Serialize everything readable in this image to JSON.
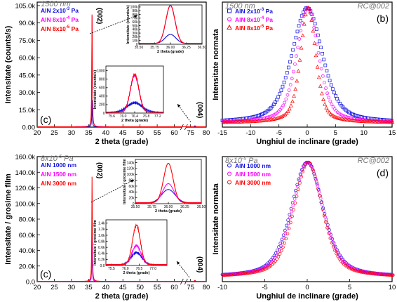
{
  "colors": {
    "blue": "#1010e0",
    "magenta": "#ff00ff",
    "red": "#ff0000"
  },
  "chart_data": [
    {
      "id": "a",
      "type": "line",
      "panel_label": "(c)",
      "note": "1500 nm",
      "xlabel": "2 theta (grade)",
      "ylabel": "Intensitate (counts/s)",
      "x_ticks": [
        "20",
        "25",
        "30",
        "35",
        "40",
        "45",
        "50",
        "55",
        "60",
        "75",
        "80"
      ],
      "y_ticks": [
        "0.00",
        "15.0k",
        "30.0k",
        "45.0k",
        "60.0k",
        "75.0k",
        "90.0k",
        "105.0k"
      ],
      "ylim": [
        0,
        108000
      ],
      "legend": {
        "position": "top-left",
        "entries": [
          {
            "name": "AlN 2x10",
            "exp": "-3",
            "unit": " Pa",
            "color": "blue"
          },
          {
            "name": "AlN 8x10",
            "exp": "-4",
            "unit": " Pa",
            "color": "magenta"
          },
          {
            "name": "AlN 8x10",
            "exp": "-5",
            "unit": " Pa",
            "color": "red"
          }
        ]
      },
      "peak_labels": [
        "(002)",
        "(004)"
      ],
      "series": [
        {
          "name": "AlN 2x10-3 Pa",
          "color": "blue",
          "peak_2theta": 36.0,
          "peak": 23000
        },
        {
          "name": "AlN 8x10-4 Pa",
          "color": "magenta",
          "peak_2theta": 36.0,
          "peak": 96000
        },
        {
          "name": "AlN 8x10-5 Pa",
          "color": "red",
          "peak_2theta": 36.0,
          "peak": 97000
        }
      ],
      "inset1": {
        "xlabel": "2 theta (grade)",
        "ylabel": "Intensitate (counts/s)",
        "x_ticks": [
          "35.50",
          "35.75",
          "36.00",
          "36.25",
          "36.50"
        ],
        "y_ticks": [
          "0",
          "10k",
          "20k",
          "30k",
          "40k",
          "50k",
          "60k",
          "70k",
          "80k",
          "90k",
          "100k"
        ],
        "xlim": [
          35.5,
          36.5
        ],
        "ylim": [
          0,
          100000
        ],
        "series": [
          {
            "color": "blue",
            "peak": 23000,
            "center": 36.0,
            "width": 0.2
          },
          {
            "color": "magenta",
            "peak": 96000,
            "center": 36.0,
            "width": 0.17
          },
          {
            "color": "red",
            "peak": 97000,
            "center": 36.0,
            "width": 0.17
          }
        ]
      },
      "inset2": {
        "xlabel": "2 theta (grade)",
        "ylabel": "Intensitate (counts/s)",
        "x_ticks": [
          "75.6",
          "76.0",
          "76.4",
          "76.8",
          "77.2"
        ],
        "y_ticks": [
          "0",
          "200",
          "400",
          "600",
          "800",
          "1000"
        ],
        "xlim": [
          75.4,
          77.4
        ],
        "ylim": [
          0,
          1000
        ],
        "series": [
          {
            "color": "blue",
            "peak": 200,
            "center": 76.4,
            "width": 0.6
          },
          {
            "color": "magenta",
            "peak": 780,
            "center": 76.4,
            "width": 0.35
          },
          {
            "color": "red",
            "peak": 800,
            "center": 76.4,
            "width": 0.35
          }
        ]
      }
    },
    {
      "id": "b",
      "type": "scatter",
      "panel_label": "(b)",
      "note": "1500 nm",
      "corner": "RC@002",
      "xlabel": "Unghiul de inclinare (grade)",
      "ylabel": "Intensitate normata",
      "x_ticks": [
        "-15",
        "-10",
        "-5",
        "0",
        "5",
        "10",
        "15"
      ],
      "xlim": [
        -15,
        15
      ],
      "legend": {
        "position": "top-left",
        "entries": [
          {
            "name": "AlN 2x10",
            "exp": "-3",
            "unit": " Pa",
            "color": "blue",
            "marker": "square"
          },
          {
            "name": "AlN 8x10",
            "exp": "-4",
            "unit": " Pa",
            "color": "magenta",
            "marker": "circle"
          },
          {
            "name": "AlN 8x10",
            "exp": "-5",
            "unit": " Pa",
            "color": "red",
            "marker": "triangle"
          }
        ]
      },
      "series": [
        {
          "name": "AlN 2x10-3 Pa",
          "color": "blue",
          "marker": "square",
          "center": 0,
          "fwhm": 6.4
        },
        {
          "name": "AlN 8x10-4 Pa",
          "color": "magenta",
          "marker": "circle",
          "center": 0,
          "fwhm": 4.6
        },
        {
          "name": "AlN 8x10-5 Pa",
          "color": "red",
          "marker": "triangle",
          "center": 0,
          "fwhm": 3.2
        }
      ]
    },
    {
      "id": "c",
      "type": "line",
      "panel_label": "(c)",
      "note": "8x10",
      "note_exp": "-5",
      "note_unit": " Pa",
      "xlabel": "2 theta (grade)",
      "ylabel": "Intensitate / grosime film",
      "x_ticks": [
        "20",
        "25",
        "30",
        "35",
        "40",
        "45",
        "50",
        "55",
        "60",
        "75",
        "80"
      ],
      "y_ticks": [
        "0.0",
        "20.0k",
        "40.0k",
        "60.0k",
        "80.0k",
        "100.0k",
        "120.0k",
        "140.0k",
        "160.0k"
      ],
      "ylim": [
        0,
        160000
      ],
      "legend": {
        "position": "top-left",
        "entries": [
          {
            "name": "AlN 1000 nm",
            "color": "blue"
          },
          {
            "name": "AlN 1500 nm",
            "color": "magenta"
          },
          {
            "name": "AlN 3000 nm",
            "color": "red"
          }
        ]
      },
      "peak_labels": [
        "(002)",
        "(004)"
      ],
      "series": [
        {
          "name": "AlN 1000 nm",
          "color": "blue",
          "peak_2theta": 36.0,
          "peak": 45000
        },
        {
          "name": "AlN 1500 nm",
          "color": "magenta",
          "peak_2theta": 36.0,
          "peak": 65000
        },
        {
          "name": "AlN 3000 nm",
          "color": "red",
          "peak_2theta": 36.0,
          "peak": 134000
        }
      ],
      "inset1": {
        "xlabel": "2 theta (grade)",
        "ylabel": "Intensitate / grosime film",
        "x_ticks": [
          "35.50",
          "35.75",
          "36.00",
          "36.25",
          "36.50"
        ],
        "y_ticks": [
          "0",
          "20k",
          "40k",
          "60k",
          "80k",
          "100k",
          "120k",
          "140k"
        ],
        "xlim": [
          35.5,
          36.5
        ],
        "ylim": [
          0,
          150000
        ],
        "series": [
          {
            "color": "blue",
            "peak": 45000,
            "center": 36.0,
            "width": 0.24
          },
          {
            "color": "magenta",
            "peak": 65000,
            "center": 36.0,
            "width": 0.2
          },
          {
            "color": "red",
            "peak": 134000,
            "center": 36.0,
            "width": 0.17
          }
        ]
      },
      "inset2": {
        "xlabel": "2 theta (grade)",
        "ylabel": "Intensitate / grosime film",
        "x_ticks": [
          "75.5",
          "76.0",
          "76.5",
          "77.0"
        ],
        "y_ticks": [
          "0.0",
          "0.2k",
          "0.4k",
          "0.6k",
          "0.8k",
          "1.0k",
          "1.2k",
          "1.4k"
        ],
        "xlim": [
          75.3,
          77.5
        ],
        "ylim": [
          0,
          1450
        ],
        "series": [
          {
            "color": "blue",
            "peak": 380,
            "center": 76.4,
            "width": 0.45
          },
          {
            "color": "magenta",
            "peak": 600,
            "center": 76.4,
            "width": 0.38
          },
          {
            "color": "red",
            "peak": 1250,
            "center": 76.4,
            "width": 0.33
          }
        ]
      }
    },
    {
      "id": "d",
      "type": "scatter",
      "panel_label": "(d)",
      "note": "8x10",
      "note_exp": "-5",
      "note_unit": " Pa",
      "corner": "RC@002",
      "xlabel": "Unghiul de inclinare (grade)",
      "ylabel": "Intensitate normata",
      "x_ticks": [
        "-10",
        "-5",
        "0",
        "5",
        "10"
      ],
      "xlim": [
        -10,
        10
      ],
      "legend": {
        "position": "top-left",
        "entries": [
          {
            "name": "AlN 1000 nm",
            "color": "blue",
            "marker": "circle"
          },
          {
            "name": "AlN 1500 nm",
            "color": "magenta",
            "marker": "circle"
          },
          {
            "name": "AlN 3000 nm",
            "color": "red",
            "marker": "circle"
          }
        ]
      },
      "series": [
        {
          "name": "AlN 1000 nm",
          "color": "blue",
          "marker": "circle",
          "center": 0,
          "fwhm": 4.5
        },
        {
          "name": "AlN 1500 nm",
          "color": "magenta",
          "marker": "circle",
          "center": 0,
          "fwhm": 4.3
        },
        {
          "name": "AlN 3000 nm",
          "color": "red",
          "marker": "circle",
          "center": 0,
          "fwhm": 4.0
        }
      ]
    }
  ]
}
